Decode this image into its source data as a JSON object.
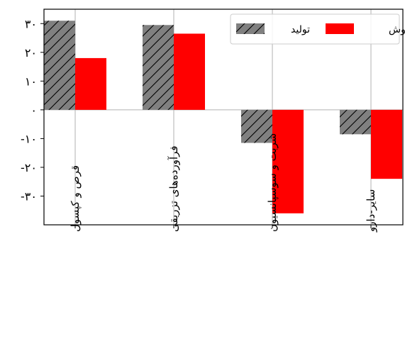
{
  "chart_data": {
    "type": "bar",
    "title": "",
    "xlabel": "",
    "ylabel": "",
    "categories": [
      "قرص و کپسول",
      "فرآورده‌های تزریقی",
      "شربت و سوسپانسیون",
      "سایر-دارو"
    ],
    "series": [
      {
        "name": "تولید",
        "color": "#808080",
        "hatch": "diagonal",
        "values": [
          31,
          29.5,
          -11.5,
          -8.5
        ]
      },
      {
        "name": "فروش",
        "color": "#ff0000",
        "hatch": "none",
        "values": [
          18,
          26.5,
          -36,
          -24
        ]
      }
    ],
    "ylim": [
      -40,
      35
    ],
    "yticks": [
      30,
      20,
      10,
      0,
      -10,
      -20,
      -30
    ],
    "ytick_labels": [
      "۳۰",
      "۲۰",
      "۱۰",
      "۰",
      "-۱۰",
      "-۲۰",
      "-۳۰"
    ],
    "grid": true,
    "legend_position": "top-right",
    "zero_line": true
  }
}
